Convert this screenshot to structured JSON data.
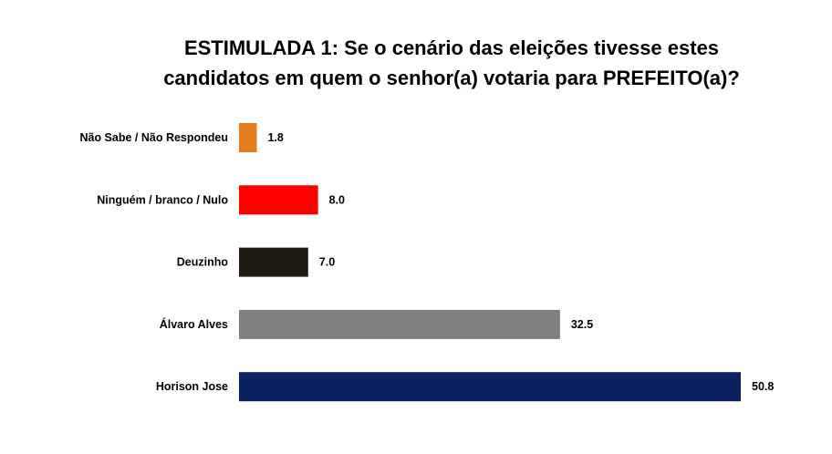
{
  "chart_data": {
    "type": "bar",
    "orientation": "horizontal",
    "title_lines": [
      "ESTIMULADA 1: Se o cenário das eleições tivesse estes",
      "candidatos em quem o senhor(a) votaria para PREFEITO(a)?"
    ],
    "categories": [
      "Não Sabe / Não Respondeu",
      "Ninguém / branco / Nulo",
      "Deuzinho",
      "Álvaro Alves",
      "Horison Jose"
    ],
    "values": [
      1.8,
      8.0,
      7.0,
      32.5,
      50.8
    ],
    "value_labels": [
      "1.8",
      "8.0",
      "7.0",
      "32.5",
      "50.8"
    ],
    "colors": [
      "#E47C1E",
      "#FF0000",
      "#1F1B14",
      "#808080",
      "#0C2260"
    ],
    "xlim": [
      0,
      50.8
    ],
    "grid": false,
    "legend": "none"
  }
}
